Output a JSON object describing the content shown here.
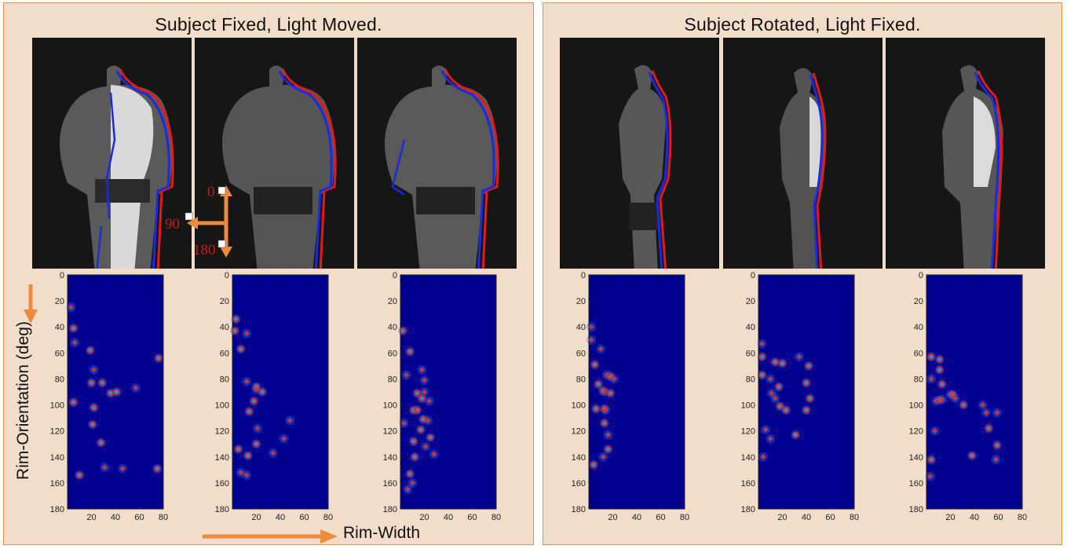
{
  "left_panel": {
    "title": "Subject Fixed, Light Moved."
  },
  "right_panel": {
    "title": "Subject Rotated, Light Fixed."
  },
  "y_axis_label": "Rim-Orientation (deg)",
  "x_axis_label": "Rim-Width",
  "light_direction_labels": [
    "0",
    "90",
    "180"
  ],
  "colors": {
    "panel_bg": "#f2ddca",
    "panel_border": "#e08f4f",
    "arrow": "#ec8a3e",
    "heatmap_bg": "#00008f",
    "marker": "#e2231a"
  },
  "heatmap_axes": {
    "x_ticks": [
      "20",
      "40",
      "60",
      "80"
    ],
    "y_ticks": [
      "0",
      "20",
      "40",
      "60",
      "80",
      "100",
      "120",
      "140",
      "160",
      "180"
    ],
    "xlim": [
      0,
      80
    ],
    "ylim": [
      0,
      180
    ]
  },
  "chart_data": [
    {
      "type": "heatmap",
      "plus": [
        [
          3,
          25
        ],
        [
          6,
          52
        ],
        [
          22,
          73
        ],
        [
          57,
          87
        ],
        [
          46,
          149
        ],
        [
          31,
          148
        ]
      ],
      "circles": [
        [
          5,
          41
        ],
        [
          19,
          58
        ],
        [
          76,
          64
        ],
        [
          20,
          83
        ],
        [
          29,
          83
        ],
        [
          36,
          91
        ],
        [
          41,
          90
        ],
        [
          5,
          98
        ],
        [
          22,
          102
        ],
        [
          21,
          115
        ],
        [
          28,
          129
        ],
        [
          10,
          154
        ],
        [
          75,
          149
        ]
      ]
    },
    {
      "type": "heatmap",
      "plus": [
        [
          12,
          45
        ],
        [
          12,
          82
        ],
        [
          20,
          88
        ],
        [
          21,
          118
        ],
        [
          7,
          152
        ],
        [
          12,
          154
        ],
        [
          48,
          112
        ],
        [
          43,
          126
        ],
        [
          34,
          137
        ]
      ],
      "circles": [
        [
          3,
          34
        ],
        [
          2,
          43
        ],
        [
          7,
          57
        ],
        [
          20,
          86
        ],
        [
          25,
          90
        ],
        [
          18,
          97
        ],
        [
          14,
          105
        ],
        [
          20,
          130
        ],
        [
          5,
          134
        ],
        [
          13,
          139
        ]
      ]
    },
    {
      "type": "heatmap",
      "plus": [
        [
          5,
          77
        ],
        [
          18,
          73
        ],
        [
          20,
          81
        ],
        [
          20,
          90
        ],
        [
          24,
          97
        ],
        [
          23,
          112
        ],
        [
          21,
          132
        ],
        [
          28,
          138
        ],
        [
          10,
          160
        ],
        [
          3,
          114
        ],
        [
          6,
          165
        ]
      ],
      "circles": [
        [
          2,
          43
        ],
        [
          8,
          59
        ],
        [
          11,
          104
        ],
        [
          14,
          91
        ],
        [
          18,
          95
        ],
        [
          14,
          104
        ],
        [
          19,
          111
        ],
        [
          17,
          119
        ],
        [
          25,
          125
        ],
        [
          11,
          128
        ],
        [
          12,
          140
        ],
        [
          8,
          153
        ]
      ]
    },
    {
      "type": "heatmap",
      "plus": [
        [
          2,
          40
        ],
        [
          2,
          50
        ],
        [
          10,
          57
        ],
        [
          15,
          77
        ],
        [
          21,
          80
        ],
        [
          13,
          90
        ],
        [
          14,
          104
        ],
        [
          16,
          123
        ],
        [
          12,
          140
        ]
      ],
      "circles": [
        [
          5,
          69
        ],
        [
          8,
          84
        ],
        [
          12,
          89
        ],
        [
          18,
          91
        ],
        [
          6,
          103
        ],
        [
          13,
          103
        ],
        [
          13,
          114
        ],
        [
          18,
          78
        ],
        [
          16,
          134
        ],
        [
          4,
          146
        ]
      ]
    },
    {
      "type": "heatmap",
      "plus": [
        [
          3,
          53
        ],
        [
          10,
          80
        ],
        [
          11,
          91
        ],
        [
          14,
          95
        ],
        [
          34,
          63
        ],
        [
          6,
          119
        ],
        [
          10,
          126
        ],
        [
          4,
          140
        ]
      ],
      "circles": [
        [
          3,
          63
        ],
        [
          3,
          77
        ],
        [
          14,
          67
        ],
        [
          20,
          68
        ],
        [
          17,
          86
        ],
        [
          42,
          70
        ],
        [
          40,
          83
        ],
        [
          43,
          95
        ],
        [
          18,
          101
        ],
        [
          23,
          104
        ],
        [
          40,
          104
        ],
        [
          31,
          123
        ]
      ]
    },
    {
      "type": "heatmap",
      "plus": [
        [
          4,
          80
        ],
        [
          8,
          97
        ],
        [
          13,
          96
        ],
        [
          24,
          95
        ],
        [
          20,
          92
        ],
        [
          47,
          100
        ],
        [
          50,
          106
        ],
        [
          59,
          106
        ],
        [
          58,
          142
        ],
        [
          3,
          155
        ],
        [
          7,
          120
        ]
      ],
      "circles": [
        [
          4,
          63
        ],
        [
          11,
          65
        ],
        [
          11,
          73
        ],
        [
          13,
          84
        ],
        [
          11,
          96
        ],
        [
          22,
          92
        ],
        [
          31,
          100
        ],
        [
          52,
          118
        ],
        [
          59,
          131
        ],
        [
          38,
          139
        ],
        [
          4,
          142
        ]
      ]
    }
  ]
}
